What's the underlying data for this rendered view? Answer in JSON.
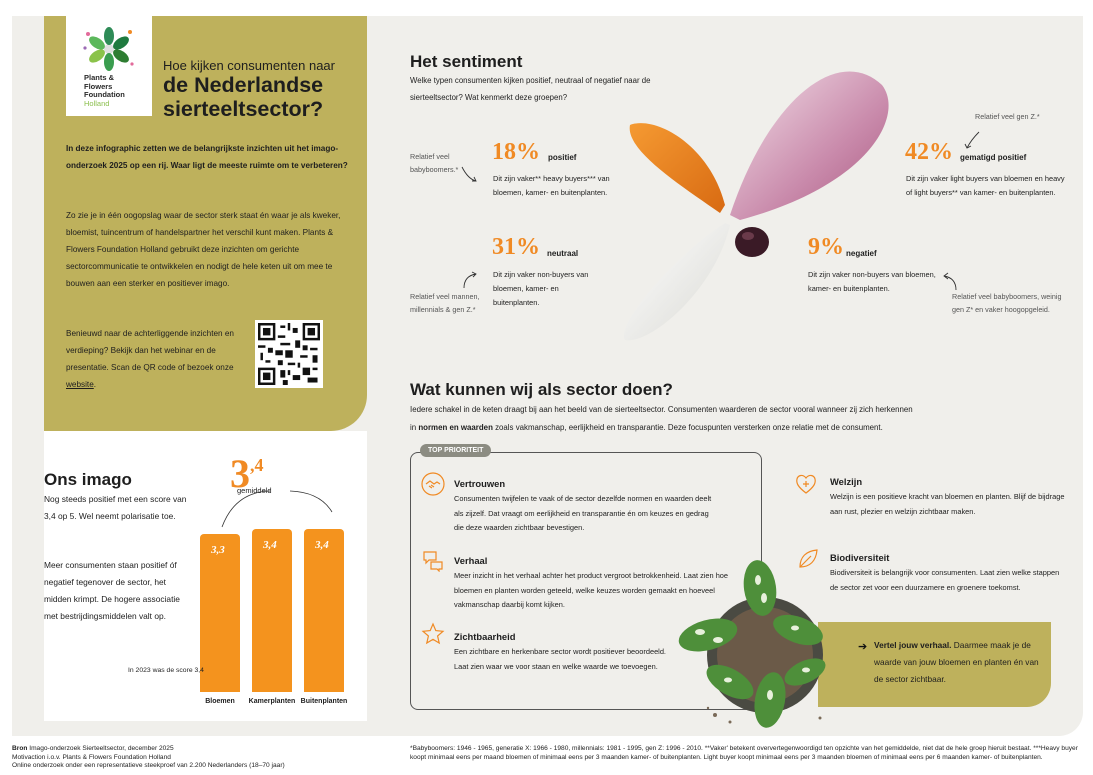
{
  "logo": {
    "line1": "Plants &",
    "line2": "Flowers",
    "line3": "Foundation",
    "line4": "Holland"
  },
  "header": {
    "question": "Hoe kijken consumenten naar",
    "title": "de Nederlandse sierteeltsector?"
  },
  "intro": {
    "p1": "In deze infographic zetten we de belangrijkste inzichten uit het imago-onderzoek 2025 op een rij. Waar ligt de meeste ruimte om te verbeteren?",
    "p2": "Zo zie je in één oogopslag waar de sector sterk staat én waar je als kweker, bloemist, tuincentrum of handelspartner het verschil kunt maken. Plants & Flowers Foundation Holland gebruikt deze inzichten om gerichte sectorcommunicatie te ontwikkelen en nodigt de hele keten uit om mee te bouwen aan een sterker en positiever imago.",
    "p3": "Benieuwd naar de achterliggende inzichten en verdieping? Bekijk dan het webinar en de presentatie. Scan de QR code of bezoek onze",
    "link": "website",
    "p3end": "."
  },
  "imago": {
    "title": "Ons imago",
    "p1": "Nog steeds positief met een score van 3,4 op 5. Wel neemt polarisatie toe.",
    "p2": "Meer consumenten staan positief óf negatief tegenover de sector, het midden krimpt. De hogere associatie met bestrijdingsmiddelen valt op.",
    "score_big": "3",
    "score_small": ",4",
    "score_label": "gemiddeld",
    "note": "In 2023 was de score 3,4"
  },
  "chart_data": {
    "type": "bar",
    "categories": [
      "Bloemen",
      "Kamerplanten",
      "Buitenplanten"
    ],
    "values": [
      3.3,
      3.4,
      3.4
    ],
    "labels": [
      "3,3",
      "3,4",
      "3,4"
    ],
    "ylim": [
      0,
      5
    ]
  },
  "sentiment": {
    "title": "Het sentiment",
    "subtitle": "Welke typen consumenten kijken positief, neutraal of negatief naar de sierteeltsector? Wat kenmerkt deze groepen?",
    "groups": [
      {
        "pct": "18%",
        "label": "positief",
        "desc": "Dit zijn vaker** heavy buyers*** van bloemen, kamer- en buitenplanten.",
        "note": "Relatief veel babyboomers.*"
      },
      {
        "pct": "31%",
        "label": "neutraal",
        "desc": "Dit zijn vaker non-buyers van bloemen, kamer- en buitenplanten.",
        "note": "Relatief veel mannen, millennials & gen Z.*"
      },
      {
        "pct": "42%",
        "label": "gematigd positief",
        "desc": "Dit zijn vaker light buyers van bloemen en heavy of light buyers** van kamer- en buitenplanten.",
        "note": "Relatief veel gen Z.*"
      },
      {
        "pct": "9%",
        "label": "negatief",
        "desc": "Dit zijn vaker non-buyers van bloemen, kamer- en buitenplanten.",
        "note": "Relatief veel babyboomers, weinig gen Z* en vaker hoogopgeleid."
      }
    ]
  },
  "actions": {
    "title": "Wat kunnen wij als sector doen?",
    "intro1": "Iedere schakel in de keten draagt bij aan het beeld van de sierteeltsector. Consumenten waarderen de sector vooral wanneer zij zich herkennen",
    "intro2a": "in ",
    "intro2b": "normen en waarden",
    "intro2c": " zoals vakmanschap, eerlijkheid en transparantie. Deze focuspunten versterken onze relatie met de consument.",
    "badge": "TOP PRIORITEIT",
    "items": [
      {
        "title": "Vertrouwen",
        "desc": "Consumenten twijfelen te vaak of de sector dezelfde normen en waarden deelt als zijzelf. Dat vraagt om eerlijkheid en transparantie én om keuzes en gedrag die deze waarden zichtbaar bevestigen."
      },
      {
        "title": "Verhaal",
        "desc": "Meer inzicht in het verhaal achter het product vergroot betrokkenheid. Laat zien hoe bloemen en planten worden geteeld, welke keuzes worden gemaakt en hoeveel vakmanschap daarbij komt kijken."
      },
      {
        "title": "Zichtbaarheid",
        "desc": "Een zichtbare en herkenbare sector wordt positiever beoordeeld. Laat zien waar we voor staan en welke waarde we toevoegen."
      },
      {
        "title": "Welzijn",
        "desc": "Welzijn is een positieve kracht van bloemen en planten. Blijf de bijdrage aan rust, plezier en welzijn zichtbaar maken."
      },
      {
        "title": "Biodiversiteit",
        "desc": "Biodiversiteit is belangrijk voor consumenten. Laat zien welke stappen de sector zet voor een duurzamere en groenere toekomst."
      }
    ],
    "cta_bold": "Vertel jouw verhaal.",
    "cta_rest": "Daarmee maak je de waarde van jouw bloemen en planten én van de sector zichtbaar."
  },
  "footer": {
    "src_label": "Bron",
    "src1": "Imago-onderzoek Sierteeltsector, december 2025",
    "src2": "Motivaction i.o.v. Plants & Flowers Foundation Holland",
    "src3": "Online onderzoek onder een representatieve steekproef van 2.200 Nederlanders (18–70 jaar)",
    "fn1": "*Babyboomers: 1946 - 1965, generatie X: 1966 - 1980, millennials: 1981 - 1995, gen Z: 1996 - 2010. **Vaker' betekent oververtegenwoordigd ten opzichte van het gemiddelde, niet dat de hele groep hieruit bestaat. ***Heavy buyer koopt minimaal eens per maand bloemen of minimaal eens per 3 maanden kamer- of buitenplanten. Light buyer koopt minimaal eens per 3 maanden bloemen of minimaal eens per 6 maanden kamer- of buitenplanten."
  },
  "colors": {
    "olive": "#beb15c",
    "orange": "#f4931e",
    "panel": "#f0efeb"
  }
}
